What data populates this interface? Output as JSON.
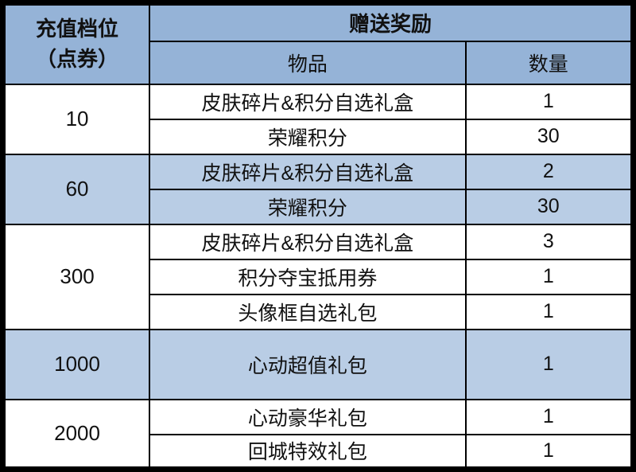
{
  "table": {
    "header": {
      "tier_line1": "充值档位",
      "tier_line2": "（点券）",
      "rewards": "赠送奖励",
      "item": "物品",
      "quantity": "数量"
    },
    "groups": [
      {
        "tier": "10",
        "highlight": false,
        "rows": [
          {
            "item": "皮肤碎片&积分自选礼盒",
            "qty": "1"
          },
          {
            "item": "荣耀积分",
            "qty": "30"
          }
        ]
      },
      {
        "tier": "60",
        "highlight": true,
        "rows": [
          {
            "item": "皮肤碎片&积分自选礼盒",
            "qty": "2"
          },
          {
            "item": "荣耀积分",
            "qty": "30"
          }
        ]
      },
      {
        "tier": "300",
        "highlight": false,
        "rows": [
          {
            "item": "皮肤碎片&积分自选礼盒",
            "qty": "3"
          },
          {
            "item": "积分夺宝抵用券",
            "qty": "1"
          },
          {
            "item": "头像框自选礼包",
            "qty": "1"
          }
        ]
      },
      {
        "tier": "1000",
        "highlight": true,
        "rows": [
          {
            "item": "心动超值礼包",
            "qty": "1"
          }
        ]
      },
      {
        "tier": "2000",
        "highlight": false,
        "rows": [
          {
            "item": "心动豪华礼包",
            "qty": "1"
          },
          {
            "item": "回城特效礼包",
            "qty": "1"
          }
        ]
      }
    ],
    "colors": {
      "header_bg": "#95B3D7",
      "highlight_row_bg": "#B9CDE5",
      "row_bg": "#FFFFFF",
      "border": "#000000",
      "text": "#111111"
    }
  }
}
